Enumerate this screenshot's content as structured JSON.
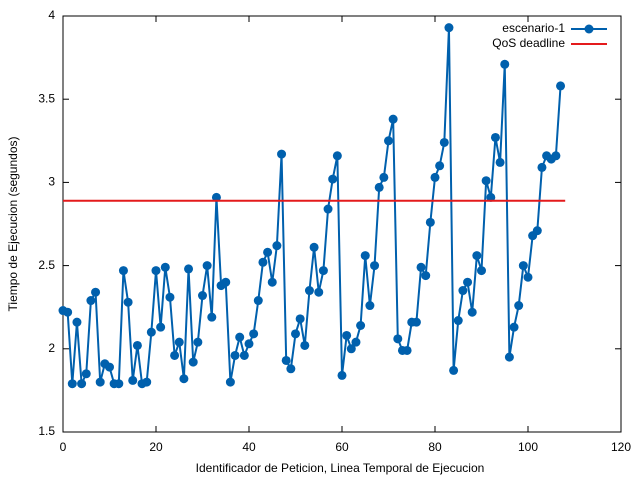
{
  "chart_data": {
    "type": "line",
    "xlabel": "Identificador de Peticion, Linea Temporal de Ejecucion",
    "ylabel": "Tiempo de Ejecucion (segundos)",
    "xlim": [
      0,
      120
    ],
    "xticks": [
      0,
      20,
      40,
      60,
      80,
      100,
      120
    ],
    "ylim": [
      1.5,
      4
    ],
    "yticks": [
      1.5,
      2,
      2.5,
      3,
      3.5,
      4
    ],
    "legend": "top-right",
    "series": [
      {
        "name": "escenario-1",
        "color": "#0060ad",
        "marker": "circle",
        "x": [
          0,
          1,
          2,
          3,
          4,
          5,
          6,
          7,
          8,
          9,
          10,
          11,
          12,
          13,
          14,
          15,
          16,
          17,
          18,
          19,
          20,
          21,
          22,
          23,
          24,
          25,
          26,
          27,
          28,
          29,
          30,
          31,
          32,
          33,
          34,
          35,
          36,
          37,
          38,
          39,
          40,
          41,
          42,
          43,
          44,
          45,
          46,
          47,
          48,
          49,
          50,
          51,
          52,
          53,
          54,
          55,
          56,
          57,
          58,
          59,
          60,
          61,
          62,
          63,
          64,
          65,
          66,
          67,
          68,
          69,
          70,
          71,
          72,
          73,
          74,
          75,
          76,
          77,
          78,
          79,
          80,
          81,
          82,
          83,
          84,
          85,
          86,
          87,
          88,
          89,
          90,
          91,
          92,
          93,
          94,
          95,
          96,
          97,
          98,
          99,
          100,
          101,
          102,
          103,
          104,
          105,
          106,
          107
        ],
        "values": [
          2.23,
          2.22,
          1.79,
          2.16,
          1.79,
          1.85,
          2.29,
          2.34,
          1.8,
          1.91,
          1.89,
          1.79,
          1.79,
          2.47,
          2.28,
          1.81,
          2.02,
          1.79,
          1.8,
          2.1,
          2.47,
          2.13,
          2.49,
          2.31,
          1.96,
          2.04,
          1.82,
          2.48,
          1.92,
          2.04,
          2.32,
          2.5,
          2.19,
          2.91,
          2.38,
          2.4,
          1.8,
          1.96,
          2.07,
          1.96,
          2.03,
          2.09,
          2.29,
          2.52,
          2.58,
          2.4,
          2.62,
          3.17,
          1.93,
          1.88,
          2.09,
          2.18,
          2.02,
          2.35,
          2.61,
          2.34,
          2.47,
          2.84,
          3.02,
          3.16,
          1.84,
          2.08,
          2.0,
          2.04,
          2.14,
          2.56,
          2.26,
          2.5,
          2.97,
          3.03,
          3.25,
          3.38,
          2.06,
          1.99,
          1.99,
          2.16,
          2.16,
          2.49,
          2.44,
          2.76,
          3.03,
          3.1,
          3.24,
          3.93,
          1.87,
          2.17,
          2.35,
          2.4,
          2.22,
          2.56,
          2.47,
          3.01,
          2.91,
          3.27,
          3.12,
          3.71,
          1.95,
          2.13,
          2.26,
          2.5,
          2.43,
          2.68,
          2.71,
          3.09,
          3.16,
          3.14,
          3.16,
          3.58
        ]
      },
      {
        "name": "QoS deadline",
        "color": "#e41a1c",
        "x": [
          0,
          108
        ],
        "values": [
          2.89,
          2.89
        ]
      }
    ]
  }
}
